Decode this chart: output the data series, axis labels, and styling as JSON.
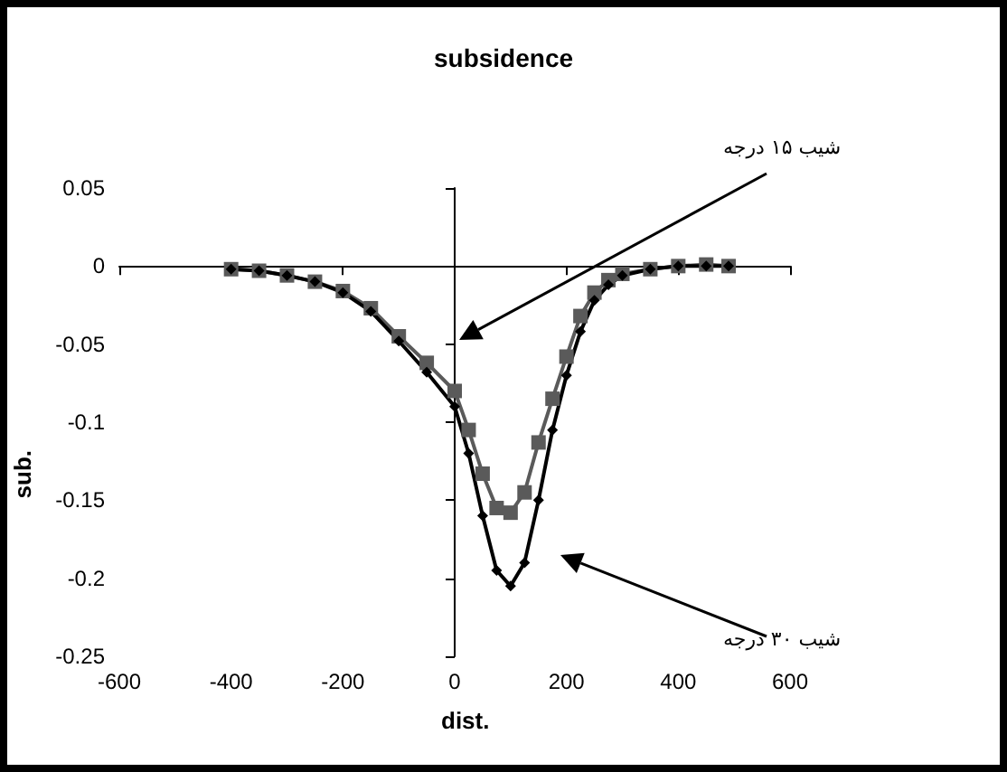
{
  "chart_data": {
    "type": "line",
    "title": "subsidence",
    "xlabel": "dist.",
    "ylabel": "sub.",
    "xlim": [
      -600,
      600
    ],
    "xticks": [
      -600,
      -400,
      -200,
      0,
      200,
      400,
      600
    ],
    "ylim": [
      -0.25,
      0.05
    ],
    "yticks": [
      -0.25,
      -0.2,
      -0.15,
      -0.1,
      -0.05,
      0,
      0.05
    ],
    "series": [
      {
        "color": "#5a5a5a",
        "marker": "square",
        "x": [
          -400,
          -350,
          -300,
          -250,
          -200,
          -150,
          -100,
          -50,
          0,
          25,
          50,
          75,
          100,
          125,
          150,
          175,
          200,
          225,
          250,
          275,
          300,
          350,
          400,
          450,
          490
        ],
        "values": [
          -0.002,
          -0.003,
          -0.006,
          -0.01,
          -0.016,
          -0.027,
          -0.045,
          -0.062,
          -0.08,
          -0.105,
          -0.133,
          -0.155,
          -0.158,
          -0.145,
          -0.113,
          -0.085,
          -0.058,
          -0.032,
          -0.017,
          -0.009,
          -0.005,
          -0.002,
          0,
          0.001,
          0
        ]
      },
      {
        "color": "#000000",
        "marker": "diamond",
        "x": [
          -400,
          -350,
          -300,
          -250,
          -200,
          -150,
          -100,
          -50,
          0,
          25,
          50,
          75,
          100,
          125,
          150,
          175,
          200,
          225,
          250,
          275,
          300,
          350,
          400,
          450,
          490
        ],
        "values": [
          -0.002,
          -0.003,
          -0.006,
          -0.01,
          -0.017,
          -0.029,
          -0.048,
          -0.068,
          -0.09,
          -0.12,
          -0.16,
          -0.195,
          -0.205,
          -0.19,
          -0.15,
          -0.105,
          -0.07,
          -0.042,
          -0.022,
          -0.012,
          -0.006,
          -0.002,
          0,
          0,
          0
        ]
      }
    ],
    "annotations": [
      "شیب ۱۵ درجه",
      "شیب ۳۰ درجه"
    ]
  }
}
